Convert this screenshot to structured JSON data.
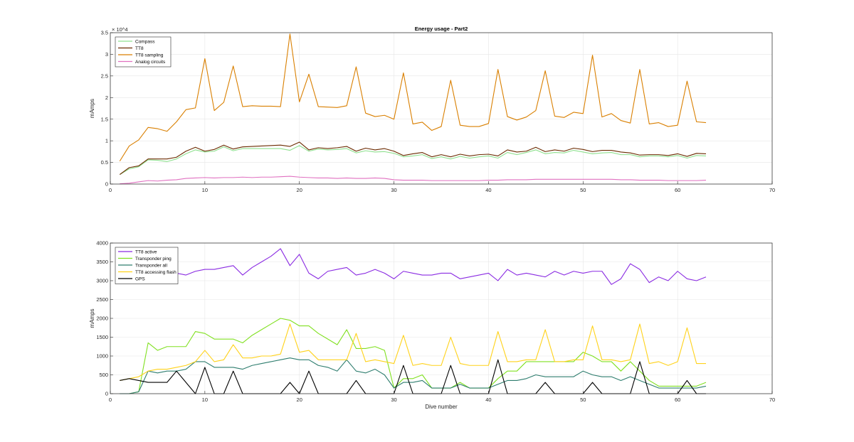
{
  "chart_data": [
    {
      "type": "line",
      "title": "Energy usage - Part2",
      "xlabel": "",
      "ylabel": "mAmps",
      "xlim": [
        0,
        70
      ],
      "ylim": [
        0,
        35000
      ],
      "xticks": [
        0,
        10,
        20,
        30,
        40,
        50,
        60,
        70
      ],
      "yticks": [
        0,
        5000,
        10000,
        15000,
        20000,
        25000,
        30000,
        35000
      ],
      "ytick_labels": [
        "0",
        "0.5",
        "1",
        "1.5",
        "2",
        "2.5",
        "3",
        "3.5"
      ],
      "y_exponent_label": "× 10^4",
      "grid": true,
      "legend_location": "top-left",
      "x": [
        1,
        2,
        3,
        4,
        5,
        6,
        7,
        8,
        9,
        10,
        11,
        12,
        13,
        14,
        15,
        16,
        17,
        18,
        19,
        20,
        21,
        22,
        23,
        24,
        25,
        26,
        27,
        28,
        29,
        30,
        31,
        32,
        33,
        34,
        35,
        36,
        37,
        38,
        39,
        40,
        41,
        42,
        43,
        44,
        45,
        46,
        47,
        48,
        49,
        50,
        51,
        52,
        53,
        54,
        55,
        56,
        57,
        58,
        59,
        60,
        61,
        62,
        63
      ],
      "series": [
        {
          "name": "Compass",
          "color": "#8fe08f",
          "values": [
            2200,
            3500,
            4000,
            5600,
            5500,
            5200,
            5800,
            7000,
            7900,
            7400,
            7600,
            8600,
            7700,
            8200,
            8200,
            8200,
            8200,
            8200,
            7800,
            8900,
            7600,
            8100,
            7900,
            8000,
            8200,
            7200,
            7700,
            7400,
            7500,
            7100,
            6300,
            6500,
            6800,
            5900,
            6300,
            5800,
            6400,
            6000,
            6300,
            6500,
            6000,
            7300,
            6800,
            7300,
            7900,
            7000,
            7300,
            7200,
            7800,
            7400,
            7000,
            7200,
            7300,
            6800,
            6800,
            6300,
            6500,
            6500,
            6300,
            6600,
            6000,
            6600,
            6500
          ]
        },
        {
          "name": "TT8",
          "color": "#6b2a00",
          "values": [
            2200,
            3800,
            4200,
            5800,
            5800,
            5800,
            6200,
            7600,
            8500,
            7600,
            8000,
            9000,
            8100,
            8600,
            8700,
            8800,
            8900,
            9000,
            8700,
            9700,
            7900,
            8400,
            8200,
            8400,
            8700,
            7600,
            8300,
            7900,
            8200,
            7600,
            6600,
            7000,
            7300,
            6300,
            6800,
            6300,
            6900,
            6500,
            6800,
            6900,
            6500,
            7900,
            7400,
            7600,
            8500,
            7500,
            7900,
            7600,
            8300,
            8000,
            7500,
            7800,
            7800,
            7400,
            7200,
            6700,
            6800,
            6800,
            6600,
            7000,
            6400,
            7100,
            7000
          ]
        },
        {
          "name": "TT8 sampling",
          "color": "#d97f00",
          "values": [
            5300,
            8800,
            10200,
            13100,
            12800,
            12200,
            14400,
            17200,
            17600,
            29000,
            17000,
            18900,
            27300,
            17900,
            18100,
            18000,
            18000,
            17900,
            34700,
            19000,
            25400,
            17900,
            17800,
            17700,
            18100,
            27100,
            16400,
            15600,
            15900,
            15000,
            25700,
            13900,
            14300,
            12400,
            13300,
            24000,
            13600,
            13300,
            13300,
            14000,
            26500,
            15600,
            14800,
            15500,
            17000,
            26200,
            15700,
            15400,
            16600,
            16300,
            29800,
            15500,
            16300,
            14700,
            14100,
            26500,
            13900,
            14200,
            13300,
            13600,
            23800,
            14400,
            14200
          ]
        },
        {
          "name": "Analog circuits",
          "color": "#e070c0",
          "values": [
            50,
            200,
            500,
            800,
            700,
            900,
            1000,
            1300,
            1400,
            1500,
            1400,
            1500,
            1500,
            1600,
            1500,
            1600,
            1600,
            1700,
            1800,
            1600,
            1500,
            1400,
            1400,
            1300,
            1400,
            1300,
            1300,
            1400,
            1300,
            1000,
            900,
            900,
            900,
            800,
            800,
            800,
            800,
            800,
            800,
            900,
            900,
            1000,
            1000,
            1000,
            1100,
            1100,
            1100,
            1100,
            1100,
            1100,
            1100,
            1100,
            1100,
            1000,
            1000,
            900,
            900,
            900,
            800,
            800,
            800,
            800,
            900
          ]
        }
      ]
    },
    {
      "type": "line",
      "title": "",
      "xlabel": "Dive number",
      "ylabel": "mAmps",
      "xlim": [
        0,
        70
      ],
      "ylim": [
        0,
        4000
      ],
      "xticks": [
        0,
        10,
        20,
        30,
        40,
        50,
        60,
        70
      ],
      "yticks": [
        0,
        500,
        1000,
        1500,
        2000,
        2500,
        3000,
        3500,
        4000
      ],
      "ytick_labels": [
        "0",
        "500",
        "1000",
        "1500",
        "2000",
        "2500",
        "3000",
        "3500",
        "4000"
      ],
      "grid": true,
      "legend_location": "top-left",
      "x": [
        1,
        2,
        3,
        4,
        5,
        6,
        7,
        8,
        9,
        10,
        11,
        12,
        13,
        14,
        15,
        16,
        17,
        18,
        19,
        20,
        21,
        22,
        23,
        24,
        25,
        26,
        27,
        28,
        29,
        30,
        31,
        32,
        33,
        34,
        35,
        36,
        37,
        38,
        39,
        40,
        41,
        42,
        43,
        44,
        45,
        46,
        47,
        48,
        49,
        50,
        51,
        52,
        53,
        54,
        55,
        56,
        57,
        58,
        59,
        60,
        61,
        62,
        63
      ],
      "series": [
        {
          "name": "TT8 active",
          "color": "#8a2be2",
          "values": [
            2950,
            3000,
            3050,
            3100,
            3150,
            3150,
            3200,
            3150,
            3250,
            3300,
            3300,
            3350,
            3400,
            3150,
            3350,
            3500,
            3650,
            3850,
            3400,
            3700,
            3200,
            3050,
            3250,
            3300,
            3350,
            3150,
            3200,
            3300,
            3200,
            3050,
            3250,
            3200,
            3150,
            3150,
            3200,
            3200,
            3050,
            3100,
            3150,
            3200,
            3000,
            3300,
            3150,
            3200,
            3150,
            3100,
            3250,
            3150,
            3250,
            3200,
            3250,
            3250,
            2900,
            3050,
            3450,
            3300,
            2950,
            3100,
            3000,
            3250,
            3050,
            3000,
            3100
          ]
        },
        {
          "name": "Transponder ping",
          "color": "#80e020",
          "values": [
            0,
            0,
            50,
            1350,
            1150,
            1250,
            1250,
            1250,
            1650,
            1600,
            1450,
            1450,
            1450,
            1350,
            1550,
            1700,
            1850,
            2000,
            1950,
            1800,
            1800,
            1600,
            1450,
            1300,
            1700,
            1200,
            1200,
            1250,
            1150,
            150,
            400,
            400,
            500,
            150,
            150,
            150,
            300,
            150,
            150,
            150,
            400,
            600,
            600,
            850,
            850,
            850,
            850,
            850,
            850,
            1100,
            1000,
            850,
            850,
            600,
            850,
            600,
            350,
            200,
            200,
            200,
            200,
            200,
            300
          ]
        },
        {
          "name": "Transponder all",
          "color": "#2e7d6e",
          "values": [
            0,
            0,
            50,
            600,
            550,
            600,
            600,
            650,
            850,
            850,
            700,
            700,
            700,
            650,
            750,
            800,
            850,
            900,
            950,
            900,
            900,
            750,
            700,
            600,
            900,
            600,
            550,
            650,
            500,
            150,
            300,
            300,
            350,
            150,
            150,
            150,
            250,
            150,
            150,
            150,
            250,
            350,
            350,
            400,
            500,
            450,
            450,
            450,
            450,
            600,
            500,
            450,
            450,
            350,
            450,
            350,
            250,
            150,
            150,
            150,
            150,
            150,
            200
          ]
        },
        {
          "name": "TT8 accessing flash",
          "color": "#ffd21a",
          "values": [
            350,
            400,
            450,
            600,
            650,
            650,
            700,
            750,
            850,
            1150,
            850,
            900,
            1300,
            950,
            950,
            1000,
            1000,
            1050,
            1850,
            1100,
            1150,
            900,
            900,
            900,
            900,
            1600,
            850,
            900,
            850,
            800,
            1550,
            750,
            800,
            750,
            750,
            1500,
            800,
            750,
            750,
            750,
            1650,
            850,
            850,
            900,
            900,
            1700,
            850,
            850,
            900,
            900,
            1800,
            900,
            900,
            850,
            900,
            1850,
            800,
            850,
            750,
            850,
            1750,
            800,
            800
          ]
        },
        {
          "name": "GPS",
          "color": "#000000",
          "values": [
            350,
            400,
            350,
            300,
            300,
            300,
            600,
            300,
            0,
            700,
            0,
            0,
            600,
            0,
            0,
            0,
            0,
            0,
            300,
            0,
            600,
            0,
            0,
            0,
            0,
            350,
            0,
            0,
            0,
            0,
            750,
            0,
            0,
            0,
            0,
            750,
            0,
            0,
            0,
            0,
            900,
            0,
            0,
            0,
            0,
            300,
            0,
            0,
            0,
            0,
            300,
            0,
            0,
            0,
            0,
            850,
            0,
            0,
            0,
            0,
            350,
            0,
            0
          ]
        }
      ]
    }
  ]
}
